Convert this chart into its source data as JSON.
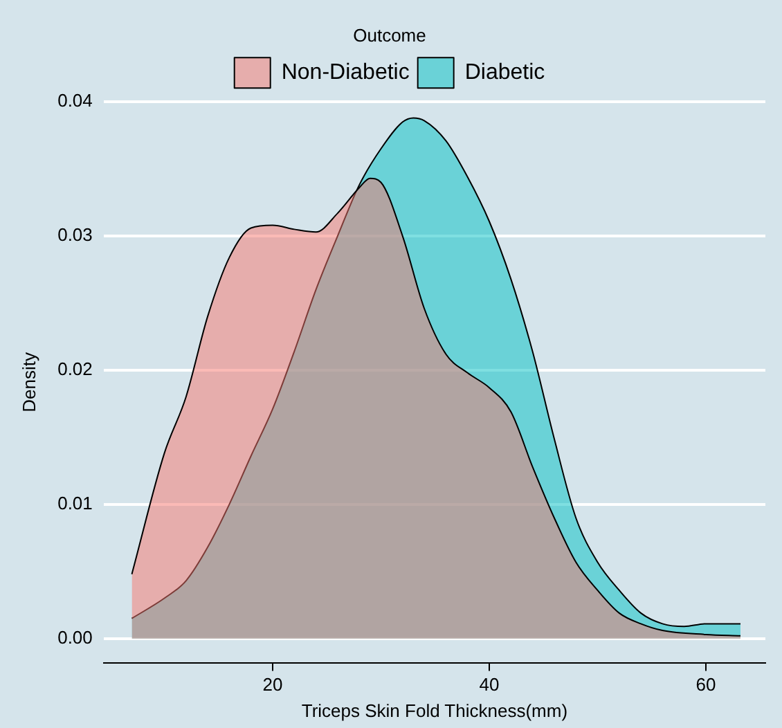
{
  "chart_data": {
    "type": "area",
    "xlabel": "Triceps Skin Fold Thickness(mm)",
    "ylabel": "Density",
    "legend_title": "Outcome",
    "legend": "top",
    "grid": "y",
    "line_style": "solid",
    "marker": "none",
    "xlim": [
      4.4,
      65.5
    ],
    "xticks": [
      20,
      40,
      60
    ],
    "ylim": [
      -0.0018,
      0.04
    ],
    "yticks": [
      {
        "value": 0,
        "label": "0.00"
      },
      {
        "value": 0.01,
        "label": "0.01"
      },
      {
        "value": 0.02,
        "label": "0.02"
      },
      {
        "value": 0.03,
        "label": "0.03"
      },
      {
        "value": 0.04,
        "label": "0.04"
      }
    ],
    "series": [
      {
        "name": "Non-Diabetic",
        "color": "#f8766d",
        "x": [
          7,
          10,
          12,
          14,
          16,
          18,
          20,
          22,
          24,
          26,
          28,
          29,
          30,
          32,
          34,
          36,
          38,
          40,
          42,
          44,
          46,
          48,
          50,
          52,
          54,
          56,
          60,
          63.2
        ],
        "values": [
          0.0048,
          0.0138,
          0.018,
          0.024,
          0.0284,
          0.0306,
          0.0308,
          0.0305,
          0.0303,
          0.0317,
          0.0336,
          0.0343,
          0.034,
          0.03,
          0.0246,
          0.0212,
          0.0198,
          0.0187,
          0.0169,
          0.0128,
          0.009,
          0.0057,
          0.0036,
          0.0019,
          0.0011,
          0.0006,
          0.0003,
          0.0002
        ]
      },
      {
        "name": "Diabetic",
        "color": "#00bfc4",
        "x": [
          7,
          10,
          12,
          14,
          16,
          18,
          20,
          22,
          24,
          26,
          28,
          30,
          32,
          33,
          34,
          36,
          38,
          40,
          42,
          44,
          46,
          48,
          50,
          52,
          54,
          56,
          58,
          60,
          63.2
        ],
        "values": [
          0.0015,
          0.003,
          0.0043,
          0.0068,
          0.01,
          0.0136,
          0.0171,
          0.0214,
          0.026,
          0.03,
          0.0338,
          0.0365,
          0.0385,
          0.0388,
          0.0386,
          0.0371,
          0.0344,
          0.0311,
          0.0268,
          0.0214,
          0.0149,
          0.009,
          0.0057,
          0.0036,
          0.0019,
          0.0011,
          0.0009,
          0.0011,
          0.0011
        ]
      }
    ]
  }
}
